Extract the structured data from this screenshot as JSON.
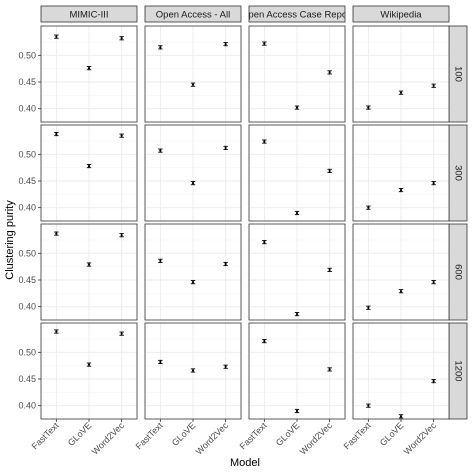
{
  "chart_data": {
    "type": "scatter",
    "facet_rows": [
      "100",
      "300",
      "600",
      "1200"
    ],
    "facet_cols": [
      "MIMIC-III",
      "Open Access - All",
      "Open Access Case Report",
      "Wikipedia"
    ],
    "categories": [
      "FastText",
      "GLoVE",
      "Word2Vec"
    ],
    "xlabel": "Model",
    "ylabel": "Clustering purity",
    "ylim": [
      0.375,
      0.555
    ],
    "yticks": [
      0.4,
      0.45,
      0.5
    ],
    "ytick_labels": [
      "0.40",
      "0.45",
      "0.50"
    ],
    "grid": true,
    "error_bars": true,
    "error_halfwidth": 0.003,
    "values": [
      [
        [
          0.535,
          0.476,
          0.532
        ],
        [
          0.515,
          0.445,
          0.521
        ],
        [
          0.522,
          0.402,
          0.468
        ],
        [
          0.402,
          0.43,
          0.443
        ]
      ],
      [
        [
          0.538,
          0.478,
          0.535
        ],
        [
          0.507,
          0.446,
          0.512
        ],
        [
          0.524,
          0.39,
          0.469
        ],
        [
          0.4,
          0.433,
          0.446
        ]
      ],
      [
        [
          0.537,
          0.479,
          0.534
        ],
        [
          0.486,
          0.446,
          0.48
        ],
        [
          0.521,
          0.386,
          0.469
        ],
        [
          0.398,
          0.429,
          0.446
        ]
      ],
      [
        [
          0.539,
          0.477,
          0.535
        ],
        [
          0.482,
          0.466,
          0.473
        ],
        [
          0.521,
          0.39,
          0.468
        ],
        [
          0.4,
          0.38,
          0.446
        ]
      ]
    ]
  }
}
